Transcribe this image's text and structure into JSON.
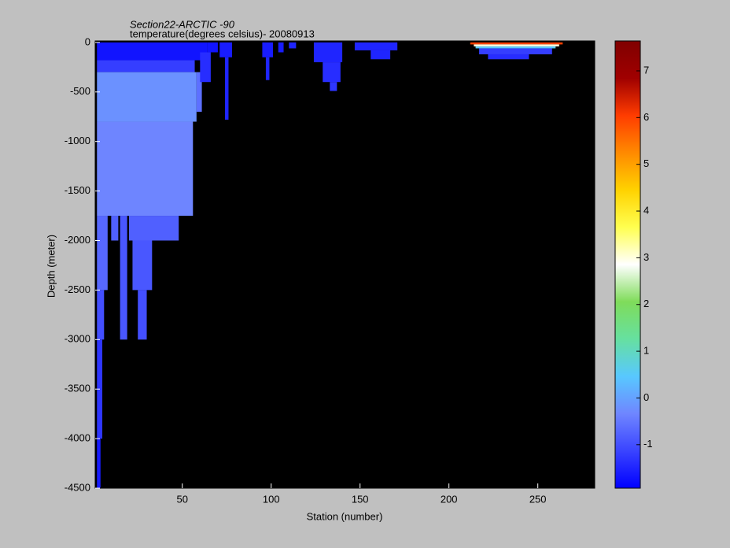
{
  "chart_data": {
    "type": "section",
    "title": "Section22-ARCTIC -90",
    "subtitle": "temperature(degrees celsius)- 20080913",
    "x_label": "Station (number)",
    "y_label": "Depth (meter)",
    "xlim": [
      1,
      282
    ],
    "xticks": [
      50,
      100,
      150,
      200,
      250
    ],
    "ylim": [
      -4500,
      15
    ],
    "yticks": [
      0,
      -500,
      -1000,
      -1500,
      -2000,
      -2500,
      -3000,
      -3500,
      -4000,
      -4500
    ],
    "background": "#000000",
    "clim": [
      -1.93,
      7.64
    ],
    "cticks": [
      -1,
      0,
      1,
      2,
      3,
      4,
      5,
      6,
      7
    ],
    "colormap": [
      "#0000ff",
      "#3a44ff",
      "#6f86ff",
      "#58c8ff",
      "#66e0a0",
      "#7fdc5a",
      "#ffffff",
      "#ffff50",
      "#ffd200",
      "#ff8a00",
      "#ff3c00",
      "#a00000",
      "#800000"
    ],
    "cells": [
      {
        "x": [
          2,
          64
        ],
        "depth": [
          0,
          -180
        ],
        "value": -1.7
      },
      {
        "x": [
          64,
          70
        ],
        "depth": [
          0,
          -100
        ],
        "value": -1.7
      },
      {
        "x": [
          2,
          57
        ],
        "depth": [
          -180,
          -300
        ],
        "value": -1.2
      },
      {
        "x": [
          2,
          58
        ],
        "depth": [
          -300,
          -800
        ],
        "value": -0.2
      },
      {
        "x": [
          58,
          61
        ],
        "depth": [
          -300,
          -700
        ],
        "value": -0.6
      },
      {
        "x": [
          2,
          56
        ],
        "depth": [
          -800,
          -1750
        ],
        "value": -0.35
      },
      {
        "x": [
          2,
          8
        ],
        "depth": [
          -1750,
          -2500
        ],
        "value": -0.7
      },
      {
        "x": [
          2,
          6
        ],
        "depth": [
          -2500,
          -3000
        ],
        "value": -1.0
      },
      {
        "x": [
          2,
          5
        ],
        "depth": [
          -3000,
          -4000
        ],
        "value": -1.3
      },
      {
        "x": [
          2,
          4
        ],
        "depth": [
          -4000,
          -4500
        ],
        "value": -1.6
      },
      {
        "x": [
          10,
          14
        ],
        "depth": [
          -1750,
          -2000
        ],
        "value": -0.8
      },
      {
        "x": [
          15,
          19
        ],
        "depth": [
          -1750,
          -3000
        ],
        "value": -0.9
      },
      {
        "x": [
          20,
          48
        ],
        "depth": [
          -1750,
          -2000
        ],
        "value": -0.8
      },
      {
        "x": [
          22,
          33
        ],
        "depth": [
          -2000,
          -2500
        ],
        "value": -0.9
      },
      {
        "x": [
          25,
          30
        ],
        "depth": [
          -2500,
          -3000
        ],
        "value": -1.0
      },
      {
        "x": [
          60,
          66
        ],
        "depth": [
          -100,
          -400
        ],
        "value": -1.4
      },
      {
        "x": [
          71,
          78
        ],
        "depth": [
          0,
          -150
        ],
        "value": -1.6
      },
      {
        "x": [
          74,
          76
        ],
        "depth": [
          -150,
          -780
        ],
        "value": -1.5
      },
      {
        "x": [
          95,
          101
        ],
        "depth": [
          0,
          -150
        ],
        "value": -1.6
      },
      {
        "x": [
          97,
          99
        ],
        "depth": [
          -150,
          -380
        ],
        "value": -1.5
      },
      {
        "x": [
          104,
          107
        ],
        "depth": [
          0,
          -100
        ],
        "value": -1.6
      },
      {
        "x": [
          110,
          114
        ],
        "depth": [
          0,
          -60
        ],
        "value": -1.5
      },
      {
        "x": [
          124,
          140
        ],
        "depth": [
          0,
          -200
        ],
        "value": -1.5
      },
      {
        "x": [
          129,
          139
        ],
        "depth": [
          -200,
          -400
        ],
        "value": -1.4
      },
      {
        "x": [
          133,
          137
        ],
        "depth": [
          -400,
          -490
        ],
        "value": -1.3
      },
      {
        "x": [
          147,
          171
        ],
        "depth": [
          0,
          -80
        ],
        "value": -1.5
      },
      {
        "x": [
          156,
          167
        ],
        "depth": [
          -80,
          -170
        ],
        "value": -1.5
      },
      {
        "x": [
          212,
          264
        ],
        "depth": [
          0,
          -20
        ],
        "value": 6.0
      },
      {
        "x": [
          214,
          262
        ],
        "depth": [
          -20,
          -40
        ],
        "value": 3.0
      },
      {
        "x": [
          215,
          260
        ],
        "depth": [
          -40,
          -60
        ],
        "value": 0.5
      },
      {
        "x": [
          217,
          258
        ],
        "depth": [
          -60,
          -120
        ],
        "value": -1.2
      },
      {
        "x": [
          222,
          245
        ],
        "depth": [
          -120,
          -170
        ],
        "value": -1.4
      }
    ]
  }
}
